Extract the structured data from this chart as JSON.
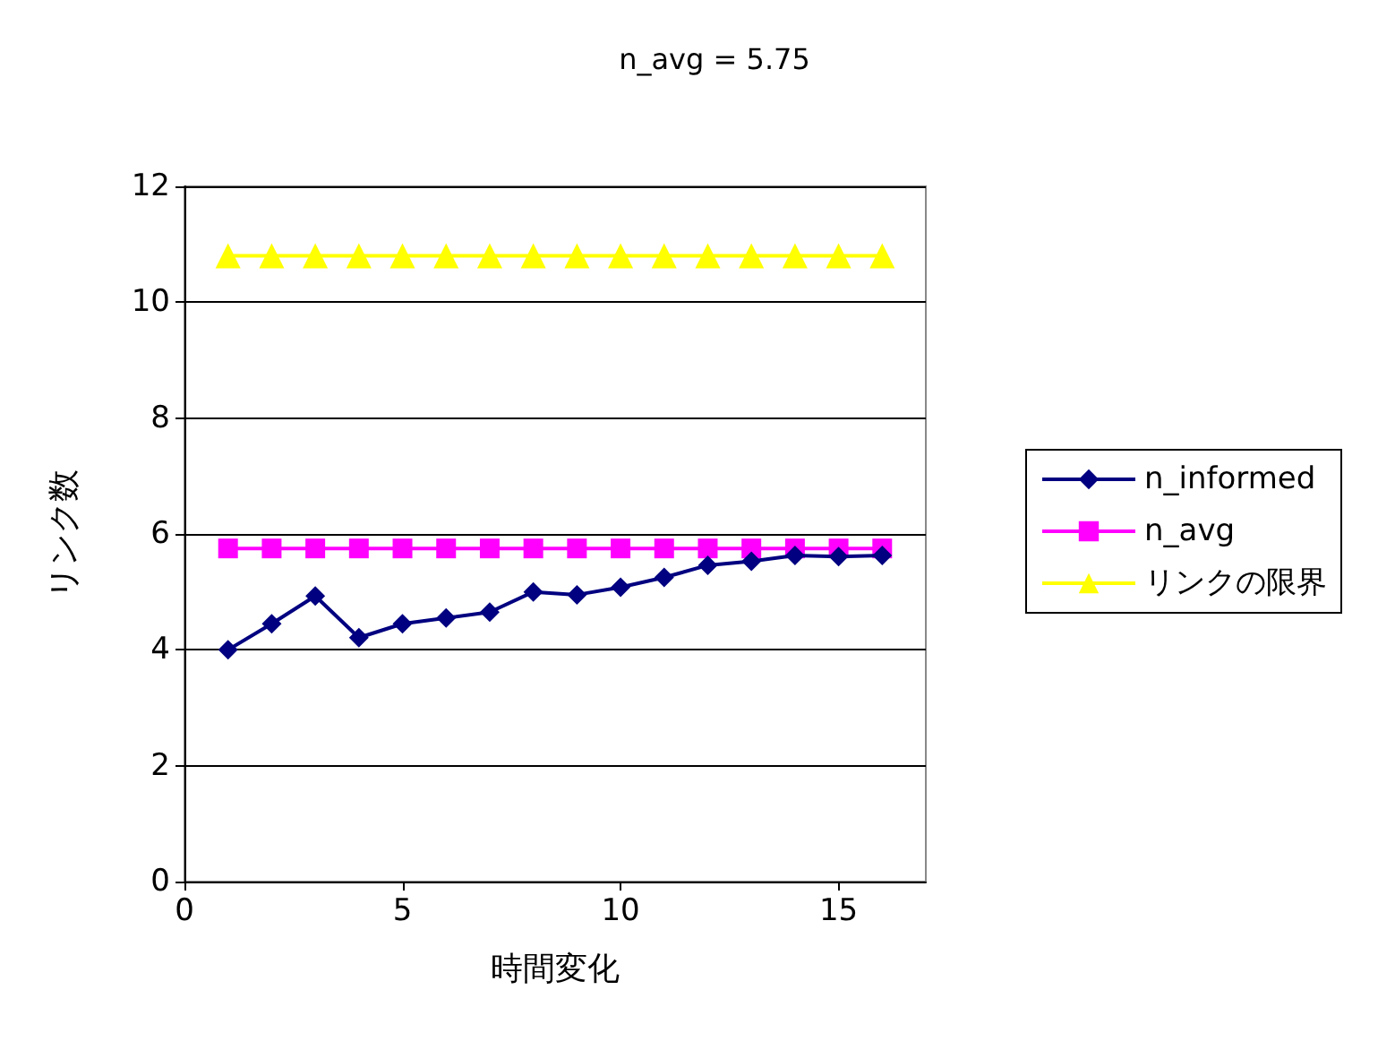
{
  "chart_data": {
    "type": "line",
    "title": "n_avg = 5.75",
    "xlabel": "時間変化",
    "ylabel": "リンク数",
    "x": [
      1,
      2,
      3,
      4,
      5,
      6,
      7,
      8,
      9,
      10,
      11,
      12,
      13,
      14,
      15,
      16
    ],
    "series": [
      {
        "name": "n_informed",
        "color": "#000080",
        "marker": "diamond",
        "values": [
          4.0,
          4.45,
          4.93,
          4.21,
          4.45,
          4.55,
          4.65,
          5.0,
          4.95,
          5.08,
          5.25,
          5.46,
          5.53,
          5.63,
          5.61,
          5.63
        ]
      },
      {
        "name": "n_avg",
        "color": "#ff00ff",
        "marker": "square",
        "values": [
          5.75,
          5.75,
          5.75,
          5.75,
          5.75,
          5.75,
          5.75,
          5.75,
          5.75,
          5.75,
          5.75,
          5.75,
          5.75,
          5.75,
          5.75,
          5.75
        ]
      },
      {
        "name": "リンクの限界",
        "color": "#ffff00",
        "marker": "triangle",
        "values": [
          10.8,
          10.8,
          10.8,
          10.8,
          10.8,
          10.8,
          10.8,
          10.8,
          10.8,
          10.8,
          10.8,
          10.8,
          10.8,
          10.8,
          10.8,
          10.8
        ]
      }
    ],
    "xlim": [
      0,
      17
    ],
    "xticks": [
      0,
      5,
      10,
      15
    ],
    "ylim": [
      0,
      12
    ],
    "yticks": [
      0,
      2,
      4,
      6,
      8,
      10,
      12
    ],
    "grid": "y",
    "legend": "right"
  }
}
